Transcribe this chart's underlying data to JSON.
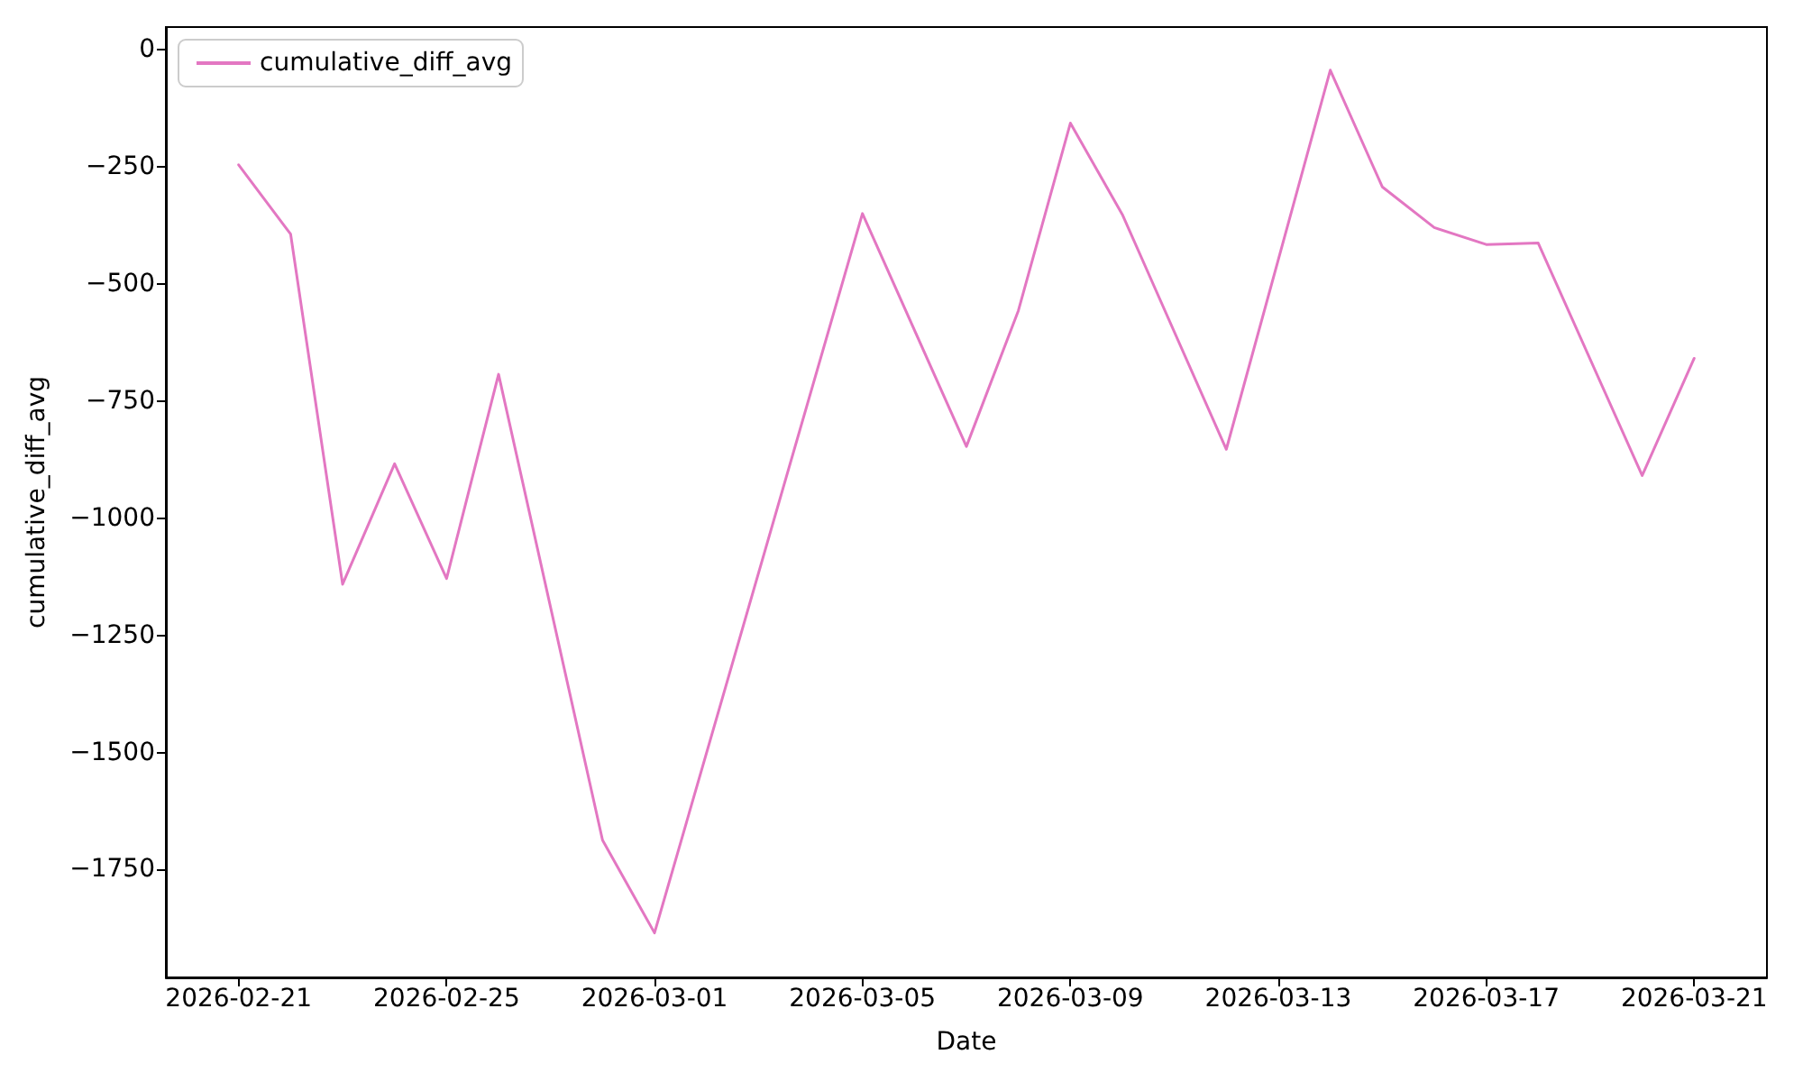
{
  "chart_data": {
    "type": "line",
    "xlabel": "Date",
    "ylabel": "cumulative_diff_avg",
    "x": [
      "2026-02-21",
      "2026-02-22",
      "2026-02-23",
      "2026-02-24",
      "2026-02-25",
      "2026-02-26",
      "2026-02-28",
      "2026-03-01",
      "2026-03-05",
      "2026-03-07",
      "2026-03-08",
      "2026-03-09",
      "2026-03-10",
      "2026-03-12",
      "2026-03-14",
      "2026-03-15",
      "2026-03-16",
      "2026-03-17",
      "2026-03-18",
      "2026-03-20",
      "2026-03-21"
    ],
    "series": [
      {
        "name": "cumulative_diff_avg",
        "color": "#e377c2",
        "values": [
          -246,
          -394,
          -1141,
          -884,
          -1129,
          -693,
          -1687,
          -1885,
          -350,
          -847,
          -557,
          -157,
          -352,
          -853,
          -44,
          -293,
          -380,
          -416,
          -413,
          -909,
          -659
        ]
      }
    ],
    "xlim": [
      "2026-02-19T14:24",
      "2026-03-22T09:36"
    ],
    "xticks": [
      "2026-02-21",
      "2026-02-25",
      "2026-03-01",
      "2026-03-05",
      "2026-03-09",
      "2026-03-13",
      "2026-03-17",
      "2026-03-21"
    ],
    "ylim": [
      -1980,
      48
    ],
    "yticks": [
      0,
      {
        "value": -250,
        "label": "−250"
      },
      {
        "value": -500,
        "label": "−500"
      },
      {
        "value": -750,
        "label": "−750"
      },
      {
        "value": -1000,
        "label": "−1000"
      },
      {
        "value": -1250,
        "label": "−1250"
      },
      {
        "value": -1500,
        "label": "−1500"
      },
      {
        "value": -1750,
        "label": "−1750"
      }
    ],
    "legend": "top left",
    "grid": false,
    "marker": "none",
    "line_style": "solid"
  }
}
